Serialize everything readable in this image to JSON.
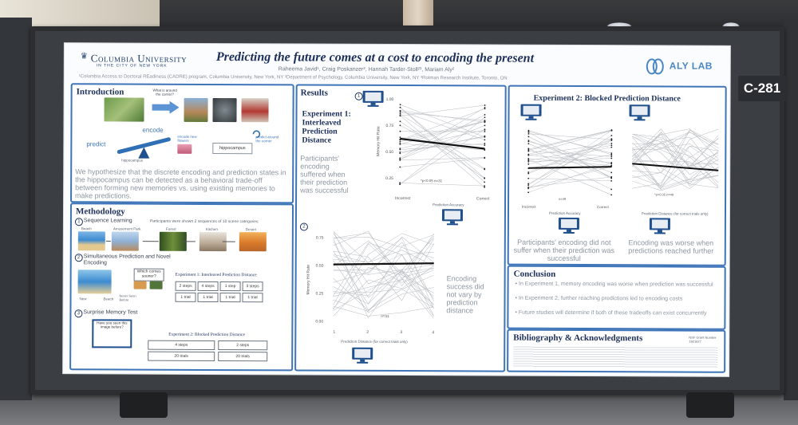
{
  "booth": {
    "label": "C-281"
  },
  "poster": {
    "university": "Columbia University",
    "university_sub": "IN THE CITY OF NEW YORK",
    "title": "Predicting the future comes at a cost to encoding the present",
    "authors": "Raheema Javid¹, Craig Poskanzer², Hannah Tarder-Stoll²³, Mariam Aly²",
    "affiliations": "¹Columbia Access to Doctoral REadiness (CADRE) program, Columbia University, New York, NY ²Department of Psychology, Columbia University, New York, NY ³Rotman Research Institute, Toronto, ON",
    "lab": "ALY LAB",
    "introduction": {
      "heading": "Introduction",
      "thought_bubble": "What is around the corner?",
      "encode": "encode",
      "predict": "predict",
      "hippocampus": "hippocampus",
      "encode_new": "encode new flowers",
      "predict_around": "predict around the corner",
      "hypothesis": "We hypothesize that the discrete encoding and prediction states in the hippocampus can be detected as a behavioral trade-off between forming new memories vs. using existing memories to make predictions."
    },
    "methodology": {
      "heading": "Methodology",
      "step1": "Sequence Learning",
      "step1_note": "Participants were shown 2 sequences of 10 scene categories",
      "scene_labels": [
        "Beach",
        "Amusement Park",
        "Forest",
        "Kitchen",
        "Desert"
      ],
      "step2": "Simultaneous Prediction and Novel Encoding",
      "which_comes": "Which comes sooner?",
      "new": "New",
      "beach": "Beach",
      "never_seen": "Never Seen Before",
      "exp1_heading": "Experiment 1: Interleaved Prediction Distance",
      "steps": [
        "2 steps",
        "4 steps",
        "1 step",
        "3 steps"
      ],
      "trials": [
        "1 trial",
        "1 trial",
        "1 trial",
        "1 trial"
      ],
      "step3": "Surprise Memory Test",
      "seen_before": "Have you seen this image before?",
      "exp2_heading": "Experiment 2: Blocked Prediction Distance",
      "exp2_steps": [
        "4 steps",
        "2 steps"
      ],
      "exp2_trials": [
        "20 trials",
        "20 trials"
      ]
    },
    "results": {
      "heading": "Results",
      "exp1_title": "Experiment 1: Interleaved Prediction Distance",
      "exp1_text": "Participants' encoding suffered when their prediction was successful",
      "chart1_ylabel": "Memory Hit Rate",
      "chart1_x": [
        "Incorrect",
        "Correct"
      ],
      "chart1_xlabel": "Prediction Accuracy",
      "chart1_stat": "*p<0.05 n=31",
      "chart2_ylabel": "Memory Hit Rate",
      "chart2_x": [
        "1",
        "2",
        "3",
        "4"
      ],
      "chart2_xlabel": "Prediction Distance (for correct trials only)",
      "chart2_n": "n=31",
      "chart2_text": "Encoding success did not vary by prediction distance",
      "y_ticks1": [
        "1.00",
        "0.75",
        "0.50",
        "0.25"
      ],
      "y_ticks2": [
        "0.75",
        "0.50",
        "0.25",
        "0.00"
      ]
    },
    "experiment2": {
      "heading": "Experiment 2: Blocked Prediction Distance",
      "left_text": "Participants' encoding did not suffer when their prediction was successful",
      "right_text": "Encoding was worse when predictions reached further",
      "left_x": [
        "Incorrect",
        "Correct"
      ],
      "left_xlabel": "Prediction Accuracy",
      "right_xlabel": "Prediction Distance (for correct trials only)",
      "stat": "*p<0.05 n=49",
      "n": "n=49"
    },
    "conclusion": {
      "heading": "Conclusion",
      "bullets": [
        "In Experiment 1, memory encoding was worse when prediction was successful",
        "In Experiment 2, further reaching predictions led to encoding costs",
        "Future studies will determine if both of these tradeoffs can exist concurrently"
      ]
    },
    "bibliography": {
      "heading": "Bibliography & Acknowledgments",
      "nsf": "NSF Grant Number 1921627"
    }
  },
  "colors": {
    "poster_blue": "#3e74b8",
    "title_navy": "#1c2f5a",
    "muted_text": "#8e96a1"
  }
}
